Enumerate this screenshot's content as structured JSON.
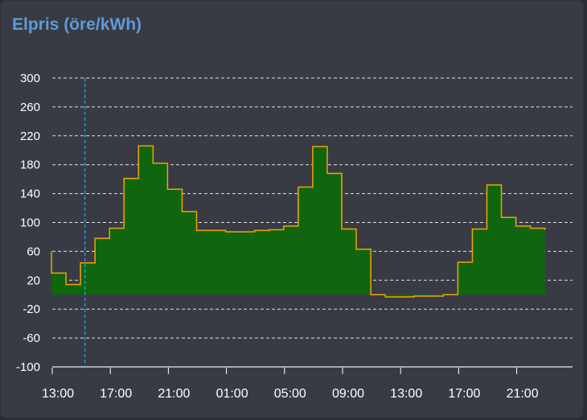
{
  "card": {
    "title": "Elpris (öre/kWh)"
  },
  "colors": {
    "background": "#383b44",
    "title": "#5e9bd8",
    "fill": "#0f660f",
    "line": "#f0a400",
    "grid": "#ffffff",
    "now_line": "#29a9e0",
    "text": "#ffffff"
  },
  "chart_data": {
    "type": "area",
    "step": true,
    "title": "Elpris (öre/kWh)",
    "xlabel": "",
    "ylabel": "",
    "ylim": [
      -100,
      300
    ],
    "y_ticks": [
      "300",
      "260",
      "220",
      "180",
      "140",
      "100",
      "60",
      "20",
      "-20",
      "-60",
      "-100"
    ],
    "x_ticks": [
      "13:00",
      "17:00",
      "21:00",
      "01:00",
      "05:00",
      "09:00",
      "13:00",
      "17:00",
      "21:00"
    ],
    "grid": true,
    "now_marker": "15:15",
    "series": [
      {
        "x": [
          "13:00",
          "14:00",
          "15:00",
          "16:00",
          "17:00",
          "18:00",
          "19:00",
          "20:00",
          "21:00",
          "22:00",
          "23:00",
          "00:00",
          "01:00",
          "02:00",
          "03:00",
          "04:00",
          "05:00",
          "06:00",
          "07:00",
          "08:00",
          "09:00",
          "10:00",
          "11:00",
          "12:00",
          "13:00",
          "14:00",
          "15:00",
          "16:00",
          "17:00",
          "18:00",
          "19:00",
          "20:00",
          "21:00",
          "22:00"
        ],
        "values": [
          30,
          14,
          44,
          78,
          92,
          161,
          206,
          182,
          146,
          115,
          89,
          89,
          87,
          87,
          89,
          90,
          95,
          149,
          205,
          168,
          91,
          63,
          0,
          -3,
          -3,
          -2,
          -2,
          0,
          45,
          91,
          152,
          107,
          95,
          92
        ]
      }
    ]
  }
}
